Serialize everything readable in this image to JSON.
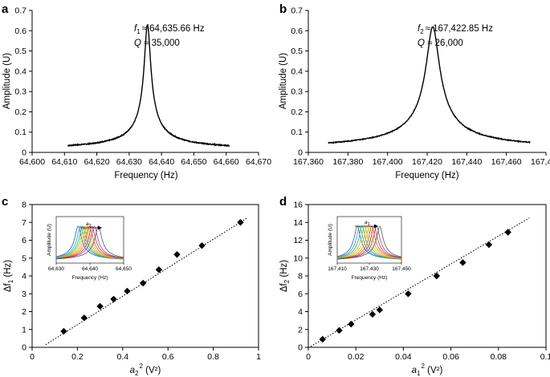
{
  "chart_data": [
    {
      "panel": "a",
      "type": "line",
      "xlabel": "Frequency (Hz)",
      "ylabel": "Amplitude (U)",
      "xlim": [
        64600,
        64670
      ],
      "ylim": [
        0,
        0.7
      ],
      "xticks": [
        "64,600",
        "64,610",
        "64,620",
        "64,630",
        "64,640",
        "64,650",
        "64,660",
        "64,670"
      ],
      "yticks": [
        "0",
        "0.1",
        "0.2",
        "0.3",
        "0.4",
        "0.5",
        "0.6",
        "0.7"
      ],
      "annotation": {
        "f_sym": "f",
        "f_sub": "1",
        "f_text": "≈ 64,635.66 Hz",
        "q_sym": "Q",
        "q_text": " ≈ 35,000"
      },
      "series": [
        {
          "name": "resonance",
          "f0": 64635.66,
          "peak": 0.63,
          "halfwidth": 0.95,
          "baseline": 0.01,
          "xmin": 64611,
          "xmax": 64661
        }
      ]
    },
    {
      "panel": "b",
      "type": "line",
      "xlabel": "Frequency (Hz)",
      "ylabel": "Amplitude (U)",
      "xlim": [
        167360,
        167480
      ],
      "ylim": [
        0,
        0.7
      ],
      "xticks": [
        "167,360",
        "167,380",
        "167,400",
        "167,420",
        "167,440",
        "167,460",
        "167,480"
      ],
      "yticks": [
        "0",
        "0.1",
        "0.2",
        "0.3",
        "0.4",
        "0.5",
        "0.6",
        "0.7"
      ],
      "annotation": {
        "f_sym": "f",
        "f_sub": "2",
        "f_text": "≈ 167,422.85 Hz",
        "q_sym": "Q",
        "q_text": " ≈ 26,000"
      },
      "series": [
        {
          "name": "resonance",
          "f0": 167422.85,
          "peak": 0.62,
          "halfwidth": 3.2,
          "baseline": 0.01,
          "xmin": 167370,
          "xmax": 167472
        }
      ]
    },
    {
      "panel": "c",
      "type": "scatter",
      "xlabel_main": "a",
      "xlabel_sub": "2",
      "xlabel_sup": "2",
      "xlabel_unit": " (V²)",
      "ylabel_main": "Δf",
      "ylabel_sub": "1",
      "ylabel_unit": " (Hz)",
      "xlim": [
        0,
        1
      ],
      "ylim": [
        0,
        8
      ],
      "xticks": [
        "0",
        "0.2",
        "0.4",
        "0.6",
        "0.8",
        "1"
      ],
      "yticks": [
        "0",
        "1",
        "2",
        "3",
        "4",
        "5",
        "6",
        "7",
        "8"
      ],
      "x": [
        0.14,
        0.23,
        0.3,
        0.36,
        0.42,
        0.49,
        0.56,
        0.64,
        0.75,
        0.92
      ],
      "y": [
        0.9,
        1.65,
        2.3,
        2.7,
        3.15,
        3.6,
        4.35,
        5.2,
        5.7,
        7.0
      ],
      "fit": {
        "x": [
          0.06,
          0.95
        ],
        "y": [
          0.15,
          7.25
        ]
      },
      "inset": {
        "xlabel": "Frequency (Hz)",
        "ylabel": "Amplitude (U)",
        "xticks": [
          "64,630",
          "64,640",
          "64,650"
        ],
        "xlim": [
          64630,
          64650
        ],
        "arrow_sym": "a",
        "arrow_sub": "2",
        "peaks": [
          64636.5,
          64637.2,
          64637.8,
          64638.3,
          64638.8,
          64639.3,
          64639.9,
          64640.6,
          64641.3,
          64642.5
        ],
        "colors": [
          "#1f5fbf",
          "#2ba0d8",
          "#3aaa55",
          "#8bc34a",
          "#e5c100",
          "#f39c12",
          "#e74c3c",
          "#c0392b",
          "#8e44ad",
          "#555555"
        ]
      }
    },
    {
      "panel": "d",
      "type": "scatter",
      "xlabel_main": "a",
      "xlabel_sub": "1",
      "xlabel_sup": "2",
      "xlabel_unit": " (V²)",
      "ylabel_main": "Δf",
      "ylabel_sub": "2",
      "ylabel_unit": " (Hz)",
      "xlim": [
        0,
        0.1
      ],
      "ylim": [
        0,
        16
      ],
      "xticks": [
        "0",
        "0.02",
        "0.04",
        "0.06",
        "0.08",
        "0.1"
      ],
      "yticks": [
        "0",
        "2",
        "4",
        "6",
        "8",
        "10",
        "12",
        "14",
        "16"
      ],
      "x": [
        0.006,
        0.013,
        0.018,
        0.027,
        0.03,
        0.042,
        0.054,
        0.065,
        0.076,
        0.084
      ],
      "y": [
        0.9,
        1.9,
        2.6,
        3.7,
        4.2,
        6.0,
        8.0,
        9.5,
        11.5,
        12.9
      ],
      "fit": {
        "x": [
          0.001,
          0.093
        ],
        "y": [
          0.1,
          14.5
        ]
      },
      "inset": {
        "xlabel": "Frequency (Hz)",
        "ylabel": "Amplitude (U)",
        "xticks": [
          "167,410",
          "167,430",
          "167,450"
        ],
        "xlim": [
          167410,
          167450
        ],
        "arrow_sym": "a",
        "arrow_sub": "1",
        "peaks": [
          167422.5,
          167424.0,
          167425.5,
          167427.0,
          167428.5,
          167430.0,
          167431.5,
          167433.0,
          167434.5,
          167436.5
        ],
        "colors": [
          "#1f5fbf",
          "#2ba0d8",
          "#3aaa55",
          "#8bc34a",
          "#e5c100",
          "#f39c12",
          "#e74c3c",
          "#c0392b",
          "#8e44ad",
          "#555555"
        ]
      }
    }
  ]
}
